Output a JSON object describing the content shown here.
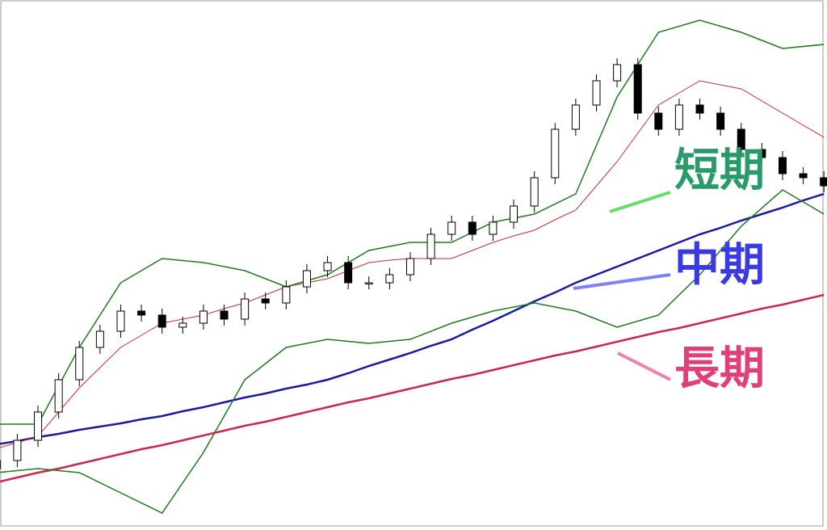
{
  "chart_data": {
    "type": "candlestick",
    "x": [
      0,
      1,
      2,
      3,
      4,
      5,
      6,
      7,
      8,
      9,
      10,
      11,
      12,
      13,
      14,
      15,
      16,
      17,
      18,
      19,
      20,
      21,
      22,
      23,
      24,
      25,
      26,
      27,
      28,
      29,
      30,
      31,
      32,
      33,
      34,
      35,
      36,
      37,
      38,
      39,
      40
    ],
    "open": [
      70,
      80,
      105,
      140,
      180,
      220,
      240,
      265,
      260,
      245,
      250,
      265,
      255,
      280,
      275,
      295,
      315,
      325,
      300,
      300,
      310,
      330,
      360,
      375,
      360,
      375,
      395,
      430,
      490,
      520,
      550,
      570,
      510,
      490,
      520,
      510,
      490,
      465,
      455,
      435,
      430
    ],
    "high": [
      88,
      113,
      148,
      188,
      228,
      248,
      273,
      273,
      268,
      258,
      273,
      273,
      288,
      288,
      303,
      323,
      333,
      333,
      308,
      318,
      338,
      368,
      383,
      383,
      383,
      403,
      438,
      498,
      528,
      558,
      578,
      578,
      518,
      528,
      528,
      518,
      498,
      473,
      463,
      443,
      438
    ],
    "low": [
      62,
      72,
      97,
      132,
      172,
      212,
      232,
      252,
      237,
      237,
      242,
      247,
      247,
      267,
      267,
      287,
      307,
      292,
      292,
      292,
      302,
      322,
      352,
      352,
      352,
      367,
      387,
      422,
      482,
      512,
      542,
      502,
      482,
      482,
      502,
      482,
      457,
      447,
      427,
      422,
      412
    ],
    "close": [
      80,
      105,
      140,
      180,
      220,
      240,
      265,
      260,
      245,
      250,
      265,
      255,
      280,
      275,
      295,
      315,
      325,
      300,
      300,
      310,
      330,
      360,
      375,
      360,
      375,
      395,
      430,
      490,
      520,
      550,
      570,
      510,
      490,
      520,
      510,
      490,
      465,
      455,
      435,
      430,
      420
    ],
    "xlim": [
      -0.5,
      40.5
    ],
    "ylim": [
      0,
      646
    ],
    "series": [
      {
        "color": "#c8284a",
        "width": 2.5,
        "values": [
          53,
          59,
          65,
          70,
          76,
          82,
          88,
          94,
          99,
          105,
          111,
          117,
          123,
          128,
          134,
          140,
          146,
          152,
          157,
          163,
          169,
          175,
          181,
          186,
          192,
          198,
          204,
          210,
          215,
          221,
          227,
          233,
          239,
          244,
          250,
          256,
          262,
          268,
          273,
          279,
          285
        ]
      },
      {
        "color": "#1a1aa0",
        "width": 2.5,
        "values": [
          100,
          104,
          109,
          113,
          118,
          122,
          126,
          131,
          135,
          141,
          146,
          152,
          158,
          163,
          169,
          174,
          180,
          188,
          197,
          205,
          213,
          222,
          230,
          242,
          253,
          265,
          277,
          288,
          300,
          310,
          320,
          330,
          340,
          350,
          360,
          368,
          377,
          385,
          393,
          402,
          410
        ]
      },
      {
        "color": "#c03030",
        "width": 1,
        "values": [
          95,
          102,
          110,
          140,
          170,
          195,
          220,
          235,
          250,
          255,
          260,
          268,
          275,
          285,
          295,
          300,
          305,
          315,
          325,
          328,
          330,
          330,
          330,
          340,
          350,
          358,
          365,
          378,
          390,
          420,
          450,
          485,
          520,
          535,
          550,
          545,
          540,
          525,
          510,
          495,
          480
        ]
      },
      {
        "color": "#1e7a1e",
        "width": 1.5,
        "x": [
          0,
          2,
          4,
          6,
          8,
          10,
          12,
          14,
          16,
          18,
          20,
          22,
          24,
          26,
          28,
          30,
          32,
          34,
          36,
          38,
          40
        ],
        "values": [
          125,
          125,
          220,
          300,
          330,
          325,
          315,
          295,
          310,
          340,
          350,
          350,
          375,
          385,
          410,
          530,
          610,
          625,
          610,
          590,
          595
        ]
      },
      {
        "color": "#1e7a1e",
        "width": 1.5,
        "x": [
          0,
          2,
          4,
          6,
          8,
          10,
          12,
          14,
          16,
          18,
          20,
          22,
          24,
          26,
          28,
          30,
          32,
          34,
          36,
          38,
          40
        ],
        "values": [
          65,
          70,
          65,
          40,
          15,
          90,
          180,
          220,
          230,
          225,
          230,
          250,
          265,
          275,
          265,
          245,
          260,
          310,
          370,
          415,
          385
        ]
      }
    ],
    "annotations": [
      {
        "text": "短期",
        "color": "#2a9a6a",
        "line_color": "#66dd66"
      },
      {
        "text": "中期",
        "color": "#3a3ae0",
        "line_color": "#8080ff"
      },
      {
        "text": "長期",
        "color": "#e0407a",
        "line_color": "#f080b0"
      }
    ]
  }
}
